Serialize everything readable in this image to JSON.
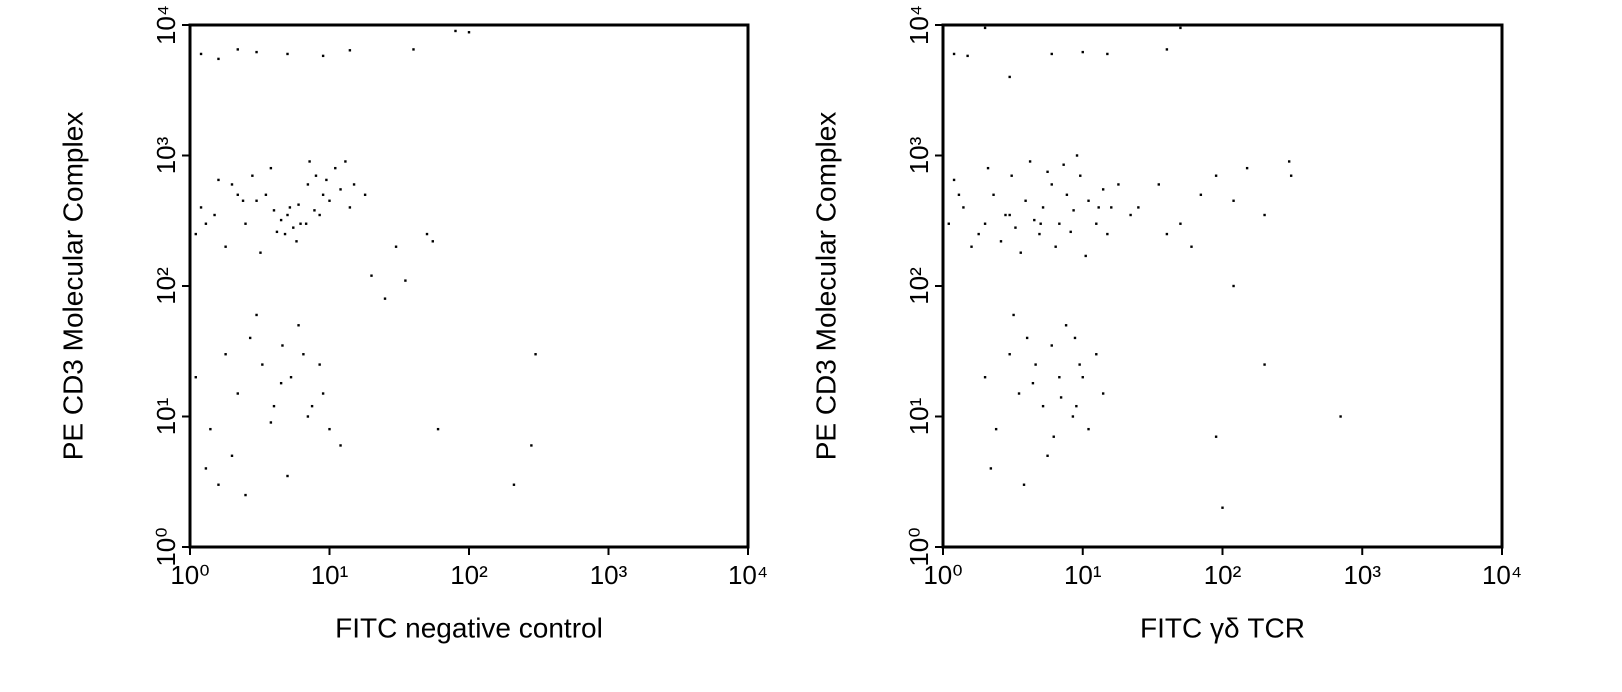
{
  "chart_data": [
    {
      "type": "scatter",
      "xlabel": "FITC negative control",
      "ylabel": "PE CD3 Molecular Complex",
      "color": "#000000",
      "xscale": "log",
      "yscale": "log",
      "xlim": [
        1,
        10000
      ],
      "ylim": [
        1,
        10000
      ],
      "xticks": [
        {
          "value": 1,
          "label": "10⁰"
        },
        {
          "value": 10,
          "label": "10¹"
        },
        {
          "value": 100,
          "label": "10²"
        },
        {
          "value": 1000,
          "label": "10³"
        },
        {
          "value": 10000,
          "label": "10⁴"
        }
      ],
      "yticks": [
        {
          "value": 1,
          "label": "10⁰"
        },
        {
          "value": 10,
          "label": "10¹"
        },
        {
          "value": 100,
          "label": "10²"
        },
        {
          "value": 1000,
          "label": "10³"
        },
        {
          "value": 10000,
          "label": "10⁴"
        }
      ],
      "x": [
        1.2,
        1.5,
        2,
        2.5,
        3,
        3.5,
        4,
        4.5,
        5,
        5.5,
        6,
        7,
        8,
        9,
        10,
        12,
        14,
        1.1,
        1.8,
        2.8,
        3.8,
        4.8,
        5.8,
        6.8,
        7.8,
        9.5,
        11,
        13,
        2.2,
        3.2,
        4.2,
        5.2,
        6.2,
        7.2,
        1.3,
        1.6,
        2.4,
        8.5,
        15,
        18,
        1.1,
        1.4,
        1.8,
        2.2,
        2.7,
        3.3,
        4,
        4.6,
        5.3,
        6,
        7,
        8.5,
        10,
        1.3,
        2,
        3,
        4.5,
        6.5,
        9,
        1.6,
        2.5,
        3.8,
        5,
        7.5,
        12,
        1.2,
        1.6,
        2.2,
        3,
        5,
        9,
        14,
        40,
        80,
        100,
        55,
        50,
        300,
        280,
        60,
        210,
        20,
        30,
        25,
        35
      ],
      "y": [
        400,
        350,
        600,
        300,
        450,
        500,
        380,
        320,
        350,
        280,
        420,
        600,
        700,
        500,
        450,
        550,
        400,
        250,
        200,
        700,
        800,
        250,
        220,
        300,
        380,
        650,
        800,
        900,
        500,
        180,
        260,
        400,
        300,
        900,
        300,
        650,
        450,
        350,
        600,
        500,
        20,
        8,
        30,
        15,
        40,
        25,
        12,
        35,
        20,
        50,
        10,
        25,
        8,
        4,
        5,
        60,
        18,
        30,
        15,
        3,
        2.5,
        9,
        3.5,
        12,
        6,
        6000,
        5500,
        6500,
        6200,
        6000,
        5800,
        6400,
        6500,
        9000,
        8800,
        220,
        250,
        30,
        6,
        8,
        3,
        120,
        200,
        80,
        110
      ]
    },
    {
      "type": "scatter",
      "xlabel": "FITC γδ TCR",
      "ylabel": "PE CD3 Molecular Complex",
      "color": "#000000",
      "xscale": "log",
      "yscale": "log",
      "xlim": [
        1,
        10000
      ],
      "ylim": [
        1,
        10000
      ],
      "xticks": [
        {
          "value": 1,
          "label": "10⁰"
        },
        {
          "value": 10,
          "label": "10¹"
        },
        {
          "value": 100,
          "label": "10²"
        },
        {
          "value": 1000,
          "label": "10³"
        },
        {
          "value": 10000,
          "label": "10⁴"
        }
      ],
      "yticks": [
        {
          "value": 1,
          "label": "10⁰"
        },
        {
          "value": 10,
          "label": "10¹"
        },
        {
          "value": 100,
          "label": "10²"
        },
        {
          "value": 1000,
          "label": "10³"
        },
        {
          "value": 10000,
          "label": "10⁴"
        }
      ],
      "x": [
        1.1,
        1.4,
        1.8,
        2.3,
        2.8,
        3.3,
        3.9,
        4.5,
        5.2,
        6,
        6.8,
        7.7,
        8.6,
        9.6,
        11,
        12.5,
        14,
        16,
        18,
        22,
        1.2,
        1.6,
        2.1,
        2.6,
        3.1,
        3.6,
        4.2,
        4.9,
        5.6,
        6.4,
        7.3,
        8.2,
        9.1,
        10.5,
        13,
        15,
        1.3,
        2,
        3,
        5,
        2,
        2.4,
        3,
        3.5,
        4,
        4.6,
        5.2,
        6,
        6.8,
        7.6,
        8.5,
        9.5,
        11,
        12.5,
        14,
        2.2,
        3.2,
        4.4,
        5.6,
        7,
        8.8,
        10,
        3.8,
        6.2,
        9,
        25,
        35,
        50,
        70,
        90,
        120,
        150,
        200,
        300,
        310,
        40,
        60,
        700,
        200,
        90,
        100,
        120,
        50,
        1.2,
        1.5,
        2,
        3,
        6,
        10,
        15,
        40
      ],
      "y": [
        300,
        400,
        250,
        500,
        350,
        280,
        450,
        320,
        400,
        600,
        300,
        500,
        380,
        700,
        450,
        300,
        550,
        400,
        600,
        350,
        650,
        200,
        800,
        220,
        700,
        180,
        900,
        250,
        750,
        200,
        850,
        260,
        1000,
        170,
        400,
        250,
        500,
        300,
        350,
        300,
        20,
        8,
        30,
        15,
        40,
        25,
        12,
        35,
        20,
        50,
        10,
        25,
        8,
        30,
        15,
        4,
        60,
        18,
        5,
        14,
        40,
        20,
        3,
        7,
        12,
        400,
        600,
        300,
        500,
        700,
        450,
        800,
        350,
        900,
        700,
        250,
        200,
        10,
        25,
        7,
        2,
        100,
        9500,
        6000,
        5800,
        9500,
        4000,
        6000,
        6200,
        6000,
        6500
      ]
    }
  ]
}
